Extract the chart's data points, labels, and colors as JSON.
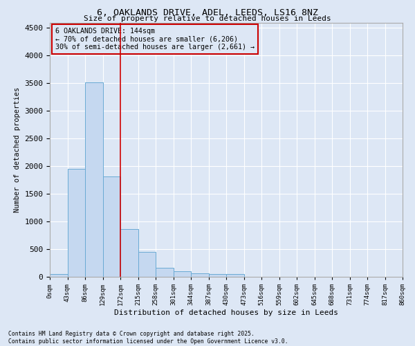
{
  "title": "6, OAKLANDS DRIVE, ADEL, LEEDS, LS16 8NZ",
  "subtitle": "Size of property relative to detached houses in Leeds",
  "xlabel": "Distribution of detached houses by size in Leeds",
  "ylabel": "Number of detached properties",
  "bar_values": [
    50,
    1950,
    3520,
    1820,
    860,
    450,
    160,
    100,
    65,
    55,
    50,
    0,
    0,
    0,
    0,
    0,
    0,
    0,
    0,
    0
  ],
  "bar_labels": [
    "0sqm",
    "43sqm",
    "86sqm",
    "129sqm",
    "172sqm",
    "215sqm",
    "258sqm",
    "301sqm",
    "344sqm",
    "387sqm",
    "430sqm",
    "473sqm",
    "516sqm",
    "559sqm",
    "602sqm",
    "645sqm",
    "688sqm",
    "731sqm",
    "774sqm",
    "817sqm",
    "860sqm"
  ],
  "bar_color": "#c5d8f0",
  "bar_edge_color": "#6aaad4",
  "background_color": "#dde7f5",
  "grid_color": "#ffffff",
  "vline_color": "#cc0000",
  "annotation_text_line1": "6 OAKLANDS DRIVE: 144sqm",
  "annotation_text_line2": "← 70% of detached houses are smaller (6,206)",
  "annotation_text_line3": "30% of semi-detached houses are larger (2,661) →",
  "annotation_box_color": "#cc0000",
  "ylim": [
    0,
    4600
  ],
  "yticks": [
    0,
    500,
    1000,
    1500,
    2000,
    2500,
    3000,
    3500,
    4000,
    4500
  ],
  "footnote1": "Contains HM Land Registry data © Crown copyright and database right 2025.",
  "footnote2": "Contains public sector information licensed under the Open Government Licence v3.0."
}
